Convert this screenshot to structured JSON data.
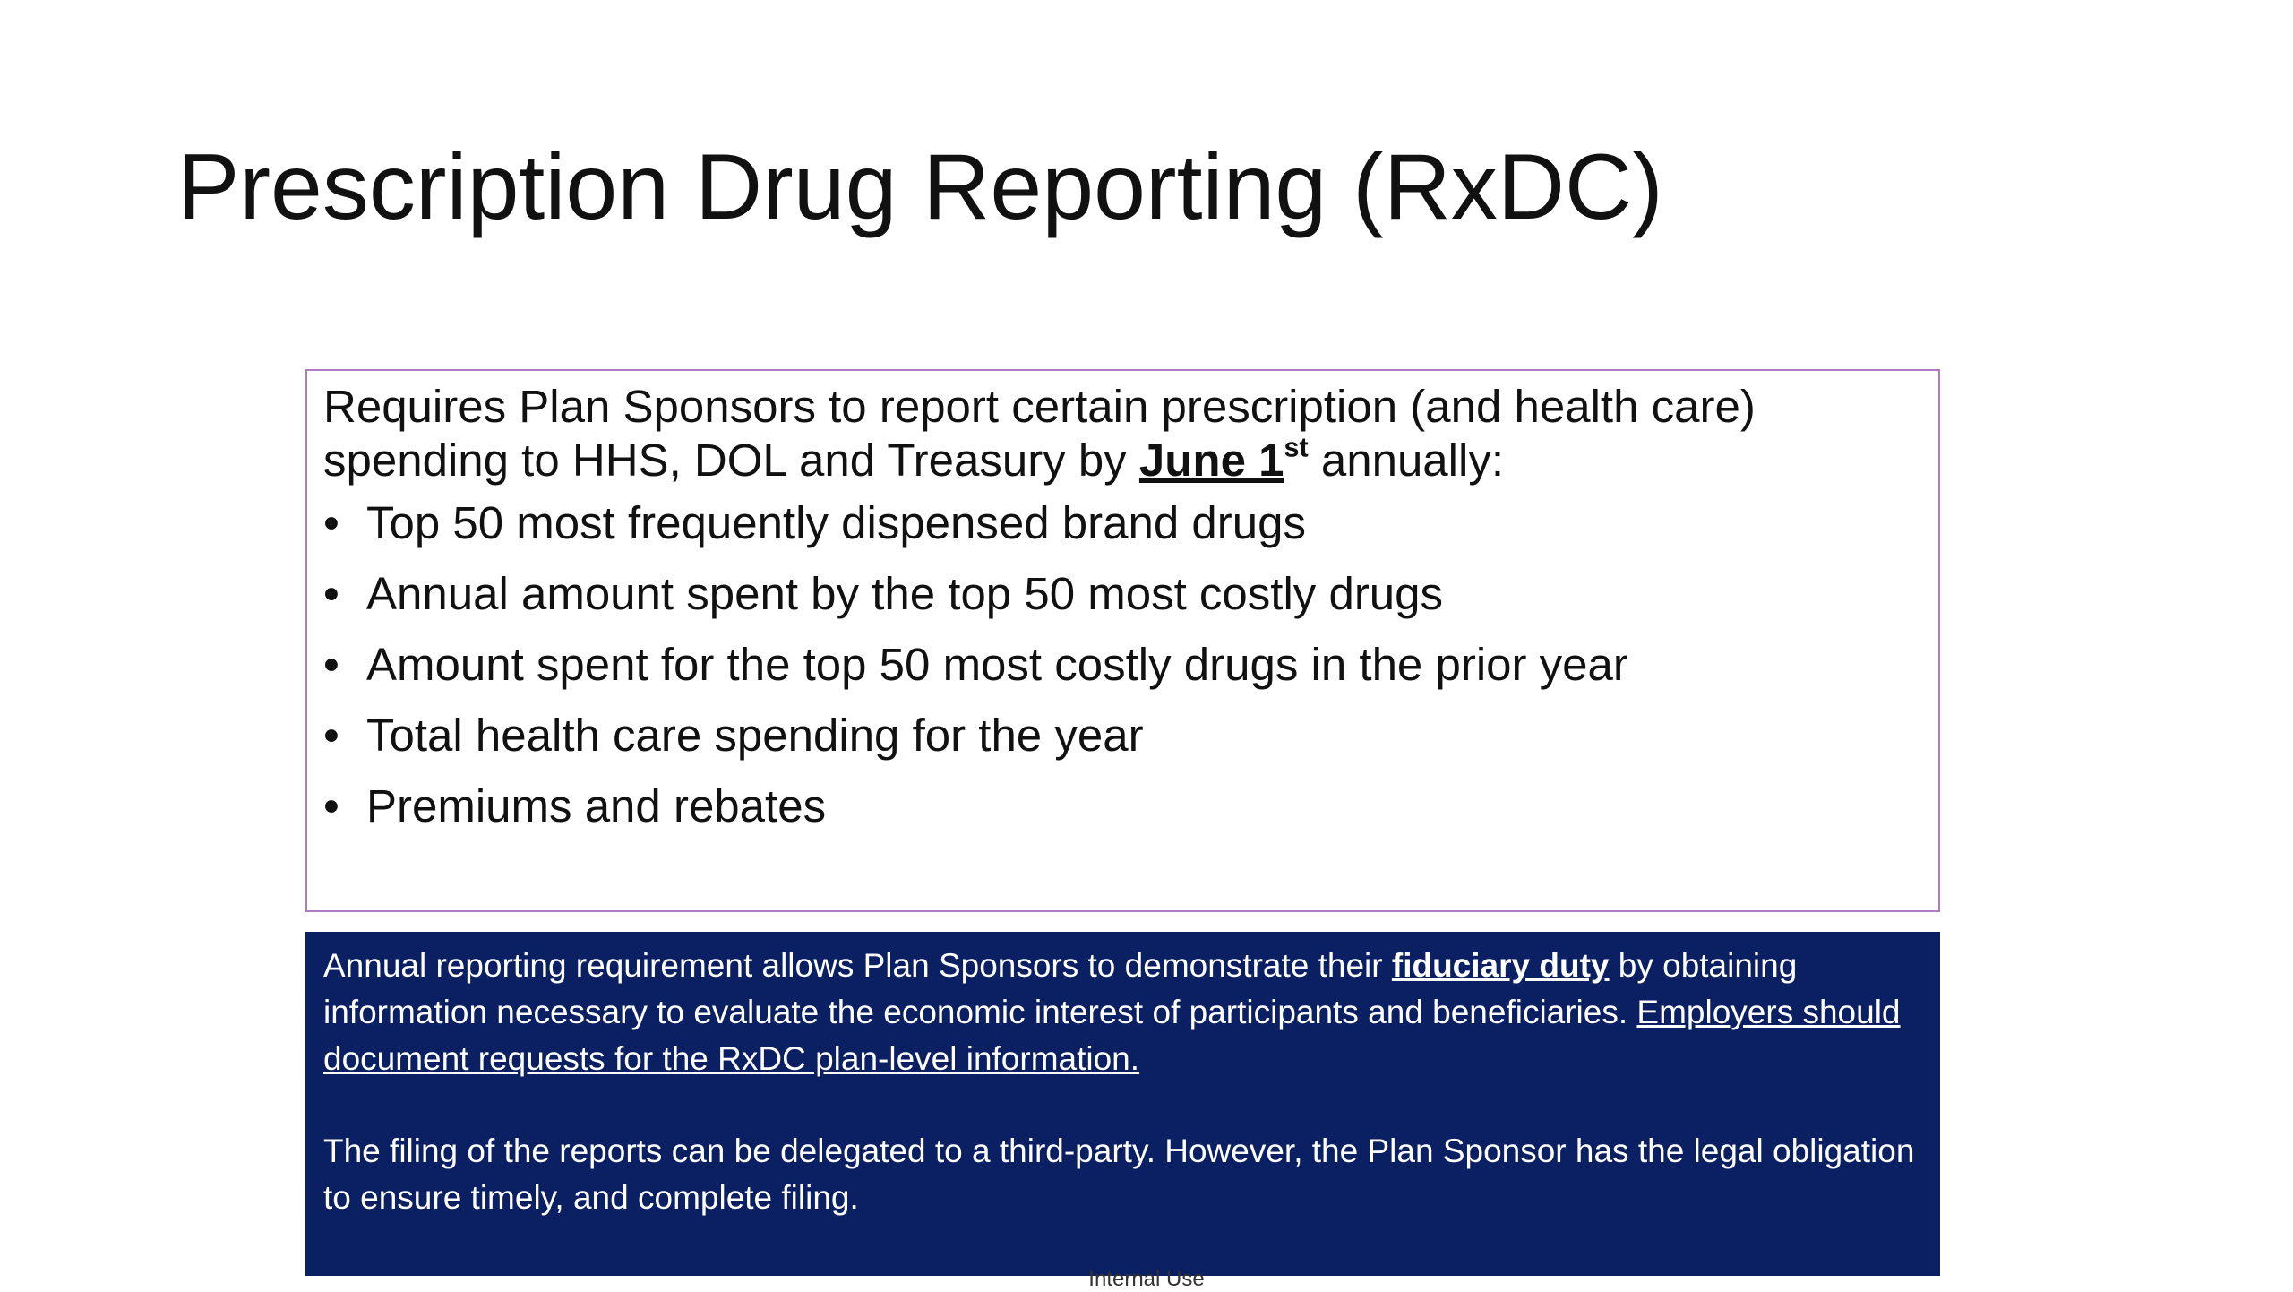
{
  "title": "Prescription Drug Reporting (RxDC)",
  "intro": {
    "text": "Requires Plan Sponsors to report certain prescription (and health care) spending to HHS, DOL and Treasury by ",
    "date": "June 1",
    "date_suffix": "st",
    "end": " annually:"
  },
  "bullets": [
    "Top 50 most frequently dispensed brand drugs",
    "Annual amount spent by the top 50 most costly drugs",
    "Amount spent for the top 50 most costly drugs in the prior year",
    "Total health care spending for the year",
    "Premiums and rebates"
  ],
  "note": {
    "p1": {
      "a": "Annual reporting requirement allows Plan Sponsors to demonstrate their ",
      "b": "fiduciary duty",
      "c": " by obtaining information necessary to evaluate the economic interest of participants and beneficiaries.  ",
      "d": "Employers should document requests for the RxDC plan-level information."
    },
    "p2": "The filing of the reports can be delegated to a third-party. However, the Plan Sponsor has the legal obligation to ensure timely, and complete filing."
  },
  "footer": "Internal Use"
}
